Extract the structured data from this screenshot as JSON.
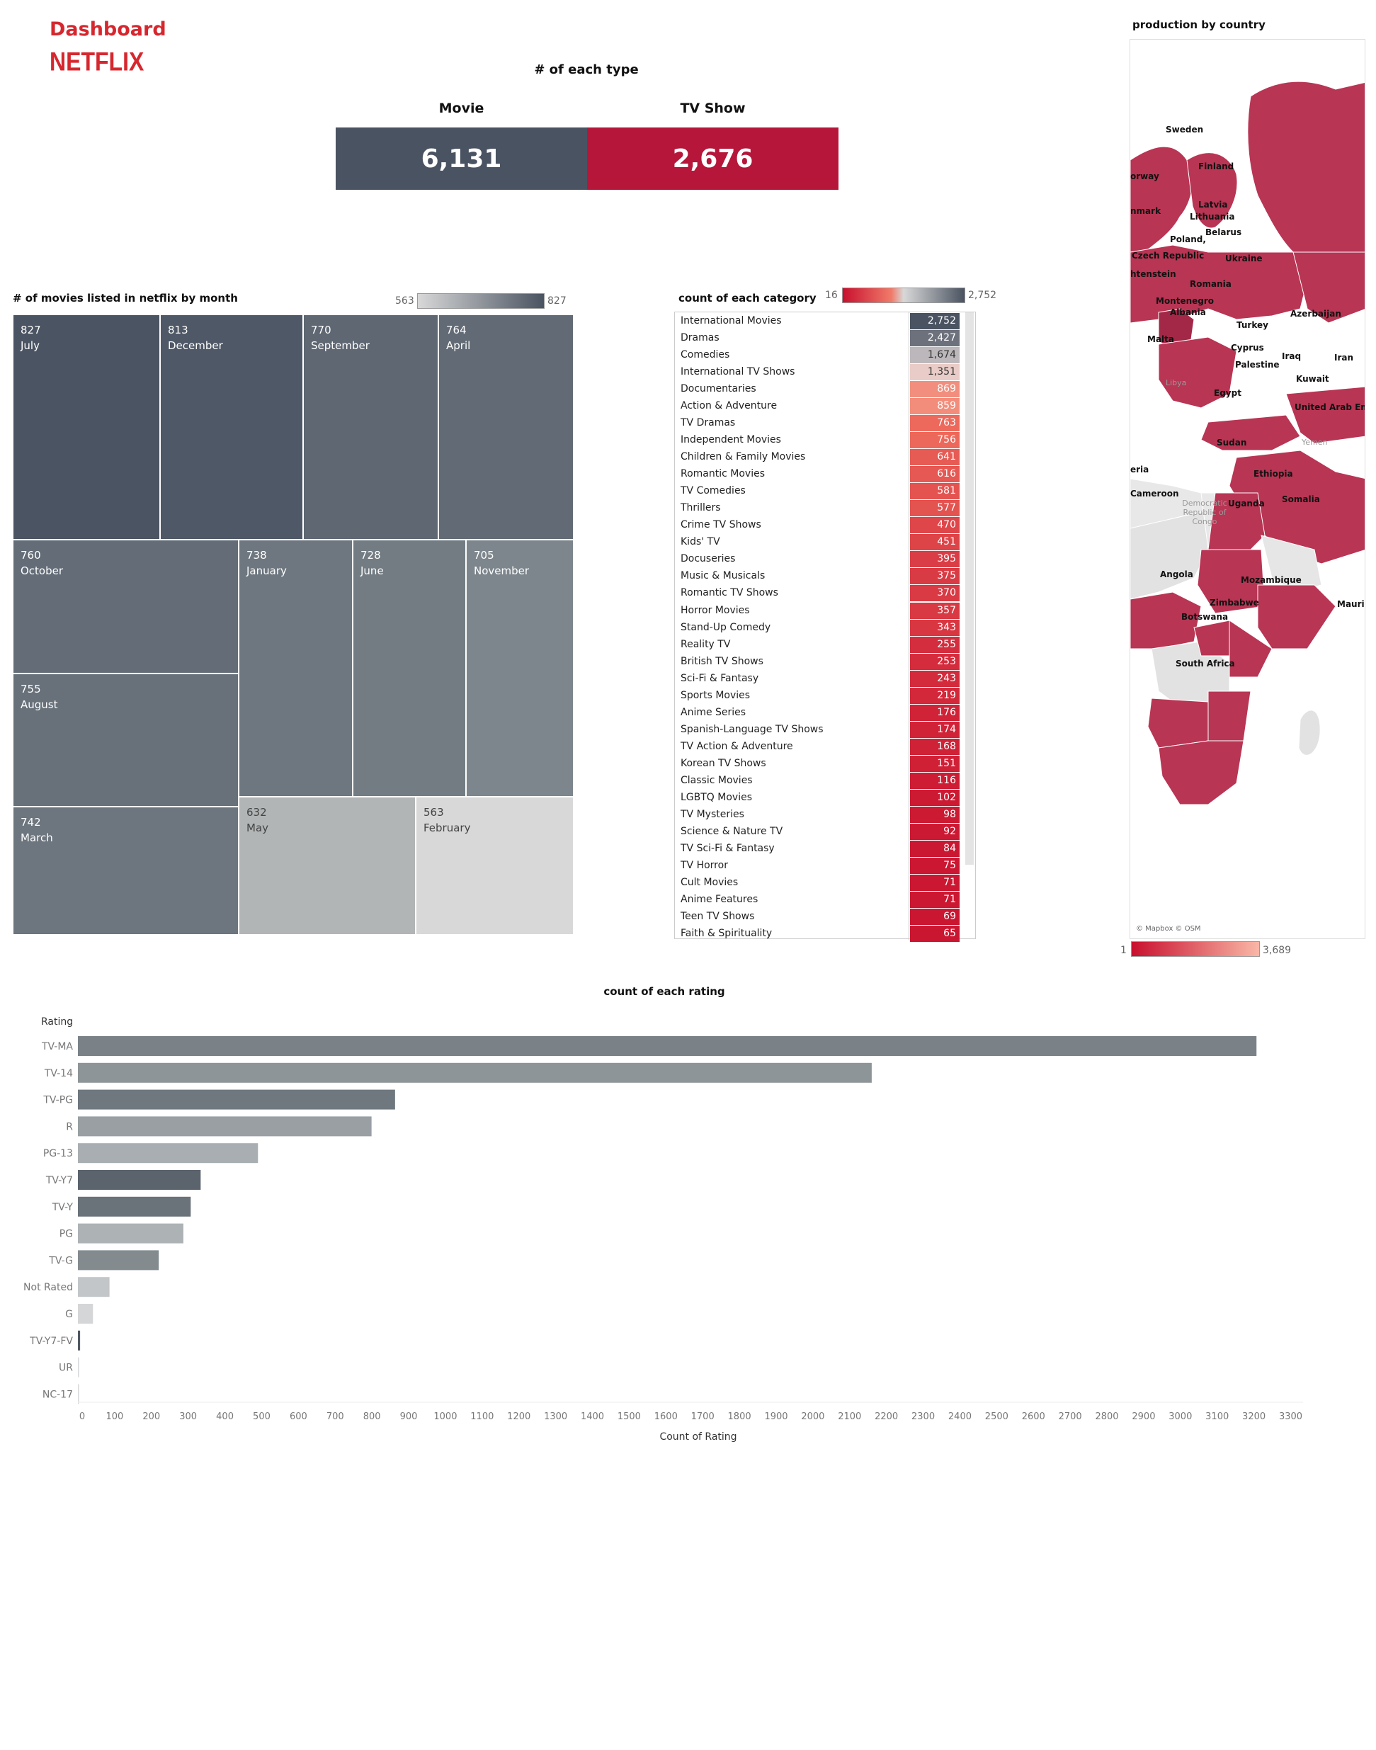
{
  "header": {
    "title": "Dashboard",
    "logo_text": "NETFLIX",
    "brand_color": "#d6272e"
  },
  "type_panel": {
    "title": "# of each type",
    "items": [
      {
        "label": "Movie",
        "value": "6,131",
        "color": "#4a5361"
      },
      {
        "label": "TV Show",
        "value": "2,676",
        "color": "#b5163a"
      }
    ]
  },
  "month_panel": {
    "title": "# of movies listed in netflix by month",
    "legend_min": "563",
    "legend_max": "827",
    "tiles": [
      {
        "value": "827",
        "month": "July"
      },
      {
        "value": "813",
        "month": "December"
      },
      {
        "value": "770",
        "month": "September"
      },
      {
        "value": "764",
        "month": "April"
      },
      {
        "value": "760",
        "month": "October"
      },
      {
        "value": "738",
        "month": "January"
      },
      {
        "value": "728",
        "month": "June"
      },
      {
        "value": "705",
        "month": "November"
      },
      {
        "value": "755",
        "month": "August"
      },
      {
        "value": "742",
        "month": "March"
      },
      {
        "value": "632",
        "month": "May"
      },
      {
        "value": "563",
        "month": "February"
      }
    ]
  },
  "category_panel": {
    "title": "count of each category",
    "legend_min": "16",
    "legend_max": "2,752",
    "rows": [
      {
        "name": "International Movies",
        "value": "2,752"
      },
      {
        "name": "Dramas",
        "value": "2,427"
      },
      {
        "name": "Comedies",
        "value": "1,674"
      },
      {
        "name": "International TV Shows",
        "value": "1,351"
      },
      {
        "name": "Documentaries",
        "value": "869"
      },
      {
        "name": "Action & Adventure",
        "value": "859"
      },
      {
        "name": "TV Dramas",
        "value": "763"
      },
      {
        "name": "Independent Movies",
        "value": "756"
      },
      {
        "name": "Children & Family Movies",
        "value": "641"
      },
      {
        "name": "Romantic Movies",
        "value": "616"
      },
      {
        "name": "TV Comedies",
        "value": "581"
      },
      {
        "name": "Thrillers",
        "value": "577"
      },
      {
        "name": "Crime TV Shows",
        "value": "470"
      },
      {
        "name": "Kids' TV",
        "value": "451"
      },
      {
        "name": "Docuseries",
        "value": "395"
      },
      {
        "name": "Music & Musicals",
        "value": "375"
      },
      {
        "name": "Romantic TV Shows",
        "value": "370"
      },
      {
        "name": "Horror Movies",
        "value": "357"
      },
      {
        "name": "Stand-Up Comedy",
        "value": "343"
      },
      {
        "name": "Reality TV",
        "value": "255"
      },
      {
        "name": "British TV Shows",
        "value": "253"
      },
      {
        "name": "Sci-Fi & Fantasy",
        "value": "243"
      },
      {
        "name": "Sports Movies",
        "value": "219"
      },
      {
        "name": "Anime Series",
        "value": "176"
      },
      {
        "name": "Spanish-Language TV Shows",
        "value": "174"
      },
      {
        "name": "TV Action & Adventure",
        "value": "168"
      },
      {
        "name": "Korean TV Shows",
        "value": "151"
      },
      {
        "name": "Classic Movies",
        "value": "116"
      },
      {
        "name": "LGBTQ Movies",
        "value": "102"
      },
      {
        "name": "TV Mysteries",
        "value": "98"
      },
      {
        "name": "Science & Nature TV",
        "value": "92"
      },
      {
        "name": "TV Sci-Fi & Fantasy",
        "value": "84"
      },
      {
        "name": "TV Horror",
        "value": "75"
      },
      {
        "name": "Cult Movies",
        "value": "71"
      },
      {
        "name": "Anime Features",
        "value": "71"
      },
      {
        "name": "Teen TV Shows",
        "value": "69"
      },
      {
        "name": "Faith & Spirituality",
        "value": "65"
      }
    ]
  },
  "map_panel": {
    "title": "production by country",
    "attribution": "© Mapbox © OSM",
    "legend_min": "1",
    "legend_max": "3,689",
    "country_labels": [
      "Sweden",
      "Finland",
      "orway",
      "nmark",
      "Latvia",
      "Lithuania",
      "Belarus",
      "Poland,",
      "Czech Republic",
      "Ukraine",
      "htenstein",
      "Romania",
      "Montenegro",
      "Albania",
      "Azerbaijan",
      "Turkey",
      "Malta",
      "Cyprus",
      "Iraq",
      "Iran",
      "Palestine",
      "Kuwait",
      "Libya",
      "Egypt",
      "United Arab Emi",
      "Sudan",
      "Yemen",
      "eria",
      "Ethiopia",
      "Cameroon",
      "Democratic Republic of Congo",
      "Uganda",
      "Somalia",
      "Angola",
      "Mozambique",
      "Zimbabwe",
      "Mauri",
      "Botswana",
      "South Africa"
    ]
  },
  "chart_data": {
    "type": "bar",
    "orientation": "horizontal",
    "title": "count  of each rating",
    "ylabel": "Rating",
    "xlabel": "Count of Rating",
    "xlim": [
      0,
      3300
    ],
    "x_ticks": [
      "0",
      "100",
      "200",
      "300",
      "400",
      "500",
      "600",
      "700",
      "800",
      "900",
      "1000",
      "1100",
      "1200",
      "1300",
      "1400",
      "1500",
      "1600",
      "1700",
      "1800",
      "1900",
      "2000",
      "2100",
      "2200",
      "2300",
      "2400",
      "2500",
      "2600",
      "2700",
      "2800",
      "2900",
      "3000",
      "3100",
      "3200",
      "3300"
    ],
    "categories": [
      "TV-MA",
      "TV-14",
      "TV-PG",
      "R",
      "PG-13",
      "TV-Y7",
      "TV-Y",
      "PG",
      "TV-G",
      "Not Rated",
      "G",
      "TV-Y7-FV",
      "UR",
      "NC-17"
    ],
    "values": [
      3207,
      2160,
      863,
      799,
      490,
      334,
      307,
      287,
      220,
      86,
      41,
      6,
      3,
      3
    ],
    "colors": [
      "#7a8288",
      "#8e9599",
      "#6f777f",
      "#999fa3",
      "#a8aeb1",
      "#5b636d",
      "#6a727a",
      "#adb2b5",
      "#838b8f",
      "#c3c6c8",
      "#d4d6d7",
      "#4f5762",
      "#d8dadb",
      "#d8dadb"
    ],
    "grid": false
  }
}
